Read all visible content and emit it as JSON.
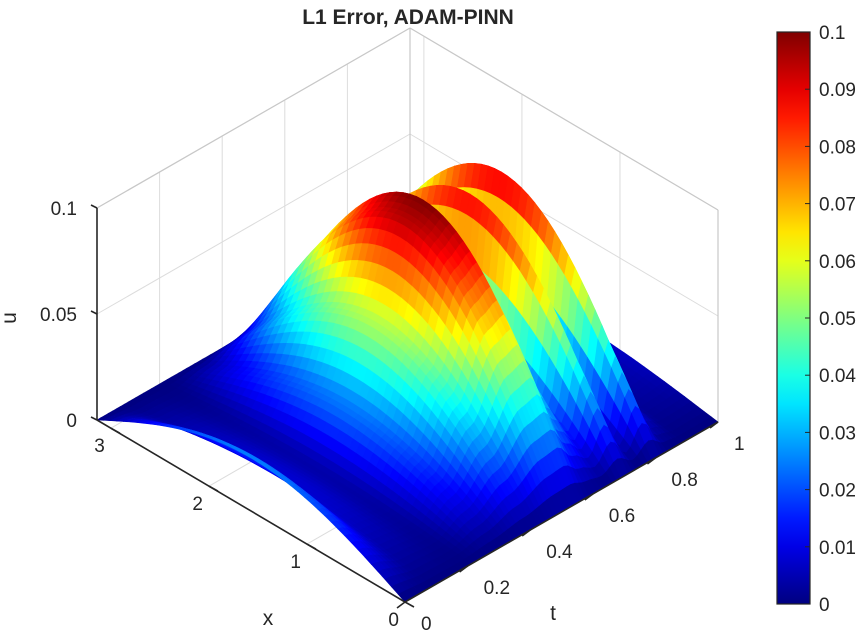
{
  "chart_data": {
    "type": "surface",
    "title": "L1 Error, ADAM-PINN",
    "xlabel": "x",
    "ylabel": "t",
    "zlabel": "u",
    "xlim": [
      0,
      3.14159
    ],
    "ylim": [
      0,
      1
    ],
    "zlim": [
      0,
      0.1
    ],
    "x_ticks": [
      "0",
      "1",
      "2",
      "3"
    ],
    "y_ticks": [
      "0",
      "0.2",
      "0.4",
      "0.6",
      "0.8",
      "1"
    ],
    "z_ticks": [
      "0",
      "0.05",
      "0.1"
    ],
    "colorbar": {
      "colormap": "jet",
      "range": [
        0,
        0.1
      ],
      "ticks": [
        "0",
        "0.01",
        "0.02",
        "0.03",
        "0.04",
        "0.05",
        "0.06",
        "0.07",
        "0.08",
        "0.09",
        "0.1"
      ]
    },
    "surface_model": "u(x,t) = sin(x) * E(t)",
    "amplitude_profile": {
      "t": [
        0,
        0.1,
        0.2,
        0.3,
        0.4,
        0.5,
        0.55,
        0.6,
        0.65,
        0.7,
        0.75,
        0.8,
        0.85,
        0.9,
        0.95,
        1.0
      ],
      "E": [
        0.025,
        0.008,
        0.004,
        0.024,
        0.055,
        0.095,
        0.1,
        0.06,
        0.035,
        0.09,
        0.022,
        0.092,
        0.02,
        0.005,
        0.006,
        0.008
      ]
    },
    "grid": true
  }
}
